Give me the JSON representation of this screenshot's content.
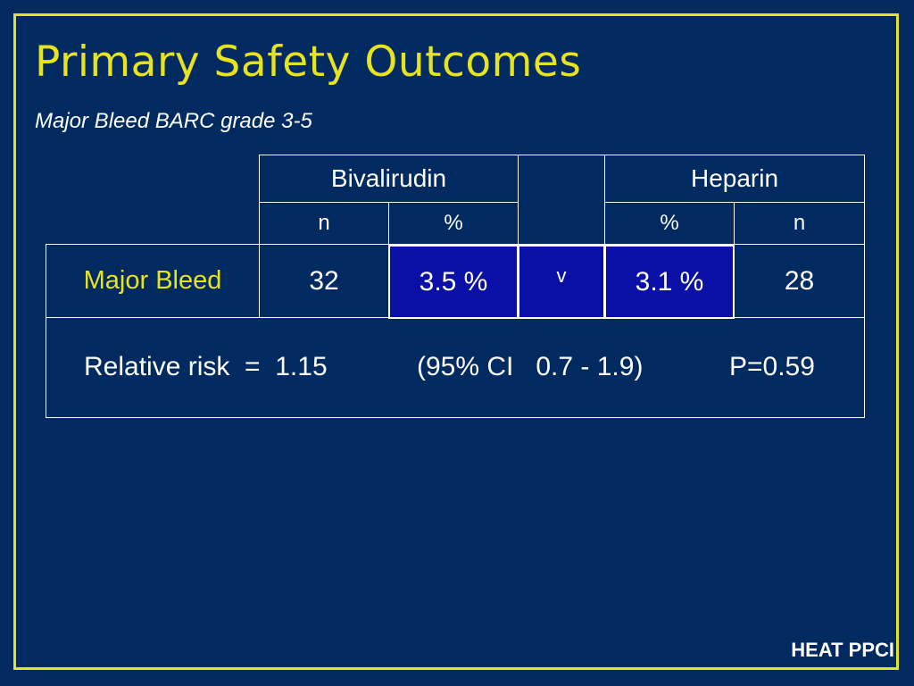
{
  "slide": {
    "title": "Primary Safety Outcomes",
    "subtitle": "Major Bleed BARC grade 3-5",
    "footer": "HEAT PPCI"
  },
  "table": {
    "groups": {
      "left": "Bivalirudin",
      "right": "Heparin"
    },
    "subheaders": {
      "left_n": "n",
      "left_pct": "%",
      "right_pct": "%",
      "right_n": "n"
    },
    "row": {
      "label": "Major Bleed",
      "left_n": "32",
      "left_pct": "3.5 %",
      "versus": "v",
      "right_pct": "3.1 %",
      "right_n": "28"
    },
    "summary": {
      "rr": "Relative risk  =  1.15",
      "ci": "(95% CI   0.7 - 1.9)",
      "p": "P=0.59"
    }
  },
  "colors": {
    "background": "#002a60",
    "accent": "#e8e31f",
    "highlight": "#0a0fa6",
    "text": "#ffffff"
  }
}
